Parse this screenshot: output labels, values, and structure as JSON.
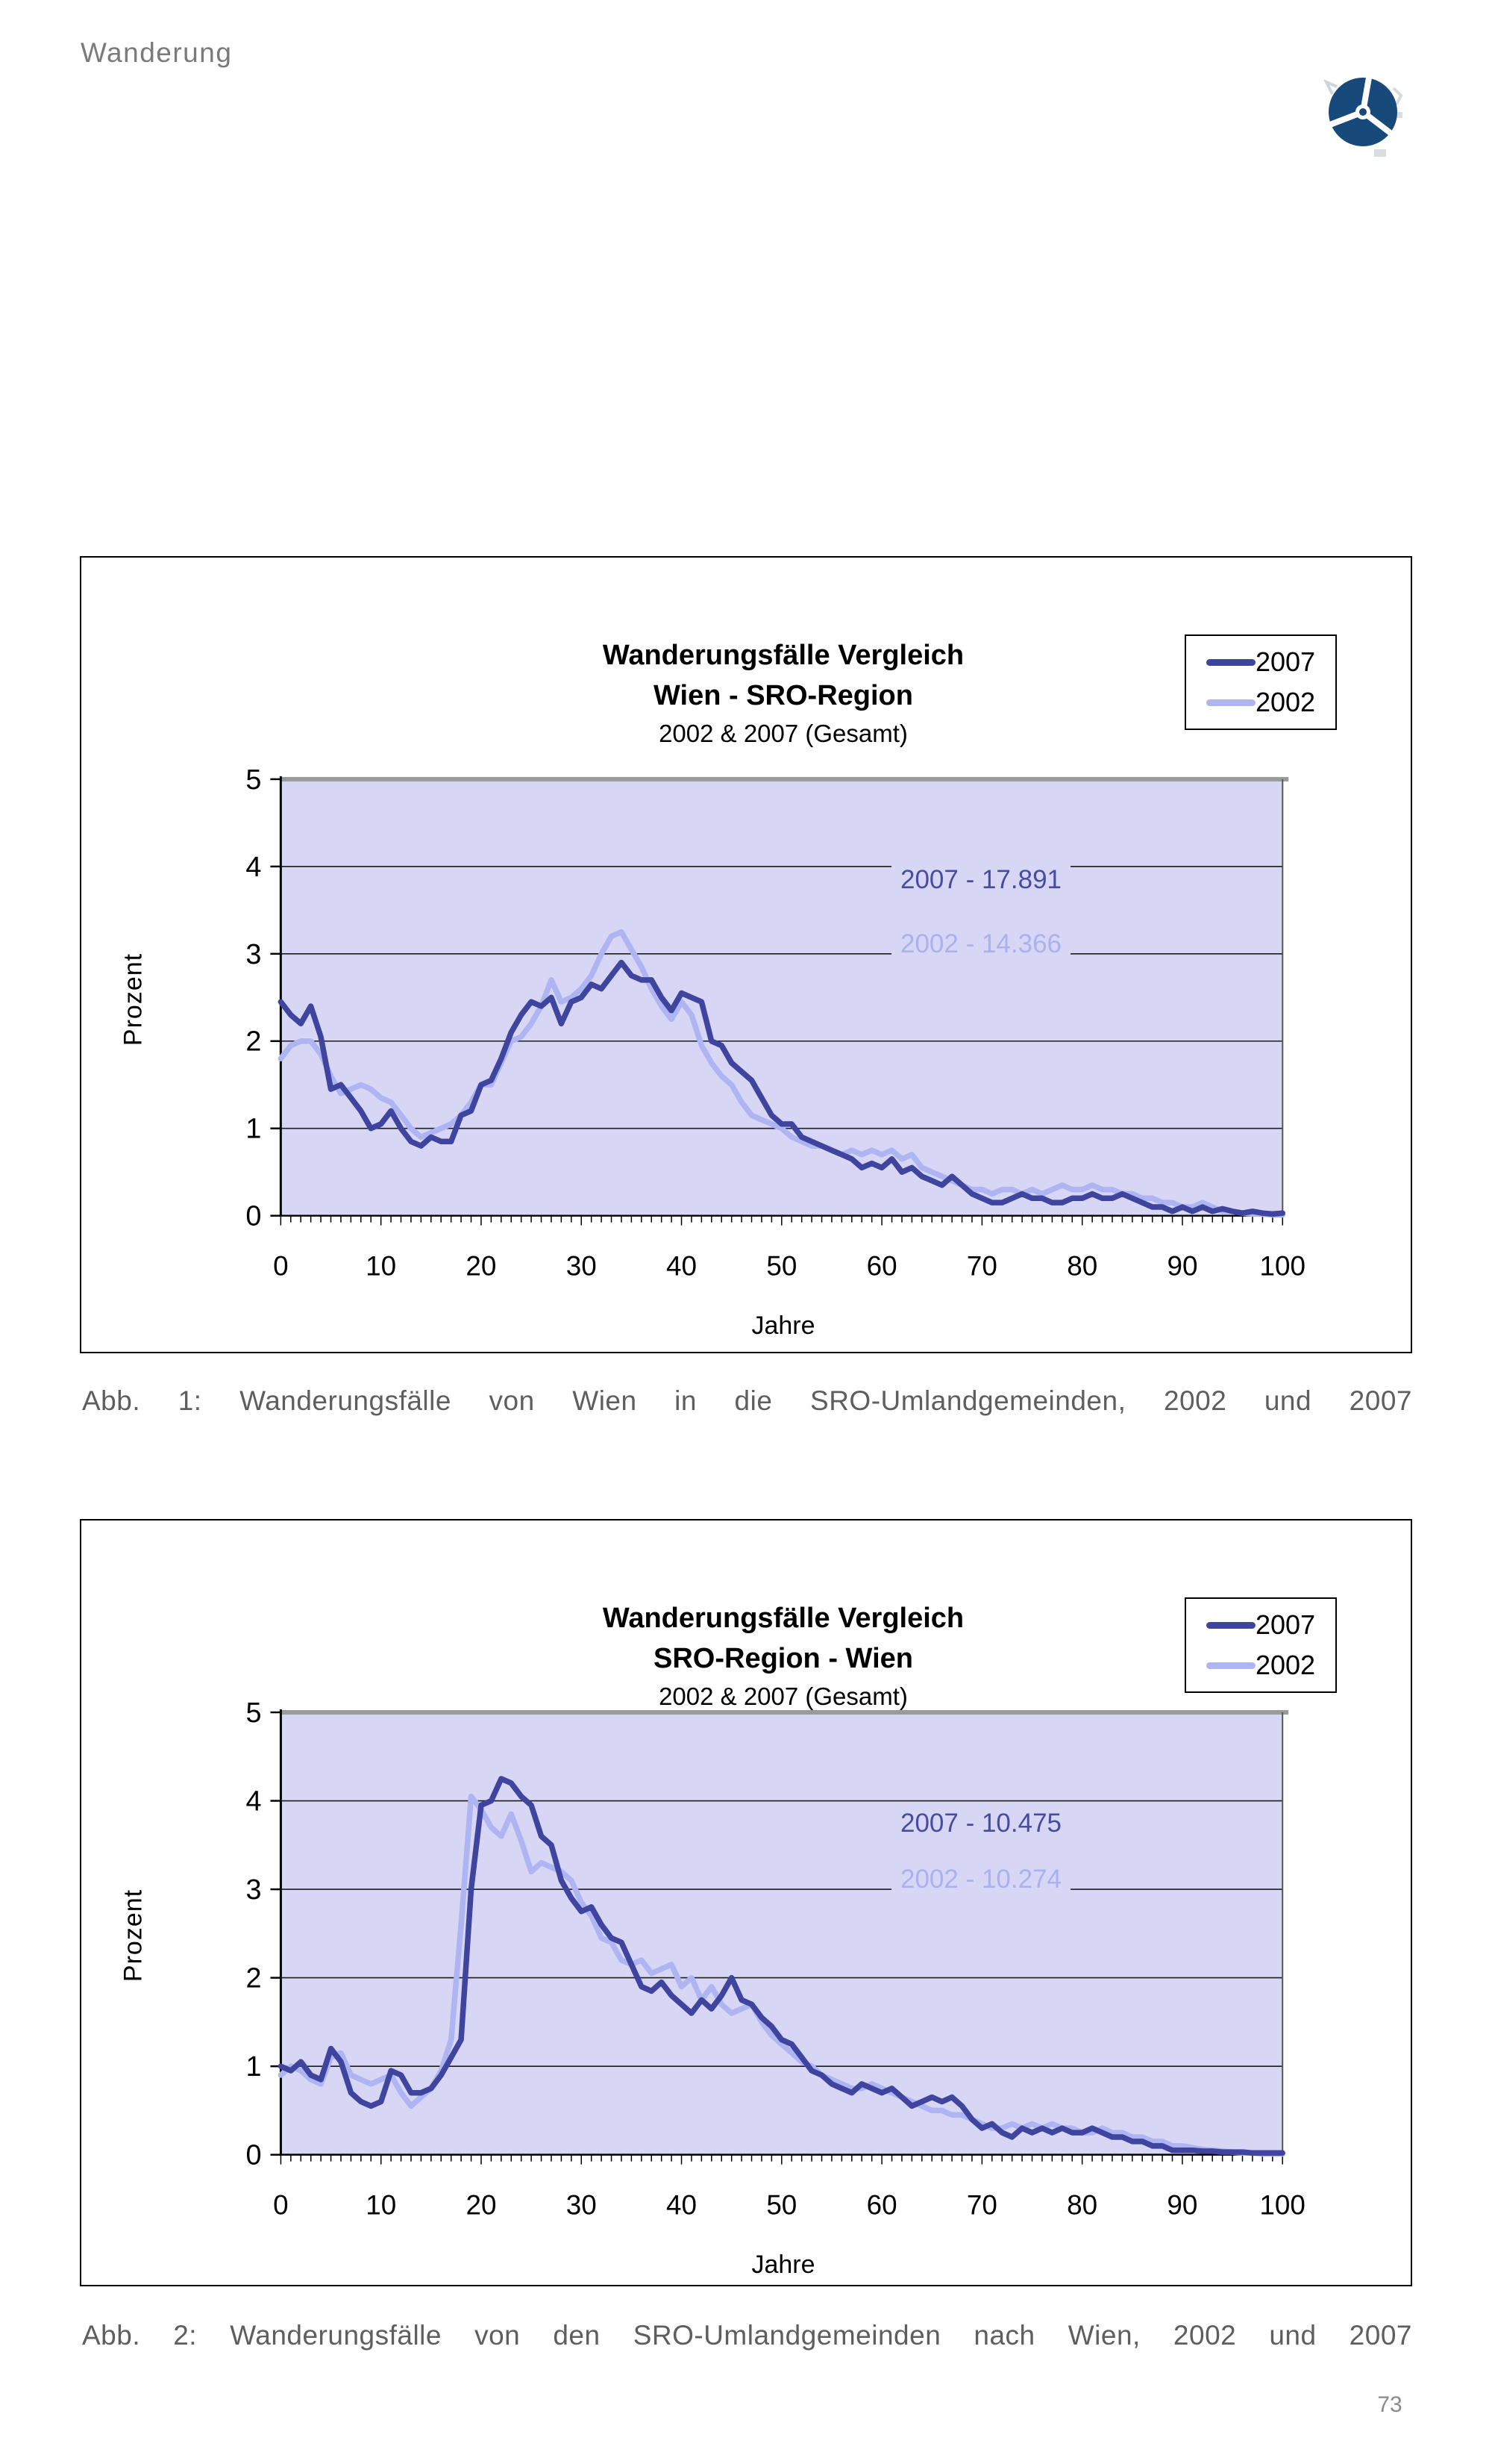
{
  "page": {
    "header_title": "Wanderung",
    "page_number": "73",
    "logo_name": "propeller-circle-logo",
    "logo_color": "#17497B"
  },
  "figures": [
    {
      "caption": "Abb. 1: Wanderungsfälle von Wien in die SRO-Umlandgemeinden, 2002 und 2007"
    },
    {
      "caption": "Abb. 2: Wanderungsfälle von den SRO-Umlandgemeinden nach Wien, 2002 und 2007"
    }
  ],
  "chart_data": [
    {
      "type": "line",
      "title": "Wanderungsfälle Vergleich",
      "subtitle": "Wien - SRO-Region",
      "subsubtitle": "2002 & 2007 (Gesamt)",
      "xlabel": "Jahre",
      "ylabel": "Prozent",
      "xlim": [
        0,
        100
      ],
      "ylim": [
        0,
        5
      ],
      "xticks": [
        0,
        10,
        20,
        30,
        40,
        50,
        60,
        70,
        80,
        90,
        100
      ],
      "yticks": [
        0,
        1,
        2,
        3,
        4,
        5
      ],
      "grid": "horizontal",
      "grid_color": "#1c1c1c",
      "plot_bg": "#D7D7F5",
      "legend_position": "top-right",
      "annotations": [
        {
          "text": "2007 - 17.891",
          "color": "#474CA3"
        },
        {
          "text": "2002 - 14.366",
          "color": "#A9B1EE"
        }
      ],
      "x_step": 1,
      "series": [
        {
          "name": "2007",
          "color": "#3F449E",
          "values": [
            2.45,
            2.3,
            2.2,
            2.4,
            2.05,
            1.45,
            1.5,
            1.35,
            1.2,
            1.0,
            1.05,
            1.2,
            1.0,
            0.85,
            0.8,
            0.9,
            0.85,
            0.85,
            1.15,
            1.2,
            1.5,
            1.55,
            1.8,
            2.1,
            2.3,
            2.45,
            2.4,
            2.5,
            2.2,
            2.45,
            2.5,
            2.65,
            2.6,
            2.75,
            2.9,
            2.75,
            2.7,
            2.7,
            2.5,
            2.35,
            2.55,
            2.5,
            2.45,
            2.0,
            1.95,
            1.75,
            1.65,
            1.55,
            1.35,
            1.15,
            1.05,
            1.05,
            0.9,
            0.85,
            0.8,
            0.75,
            0.7,
            0.65,
            0.55,
            0.6,
            0.55,
            0.65,
            0.5,
            0.55,
            0.45,
            0.4,
            0.35,
            0.45,
            0.35,
            0.25,
            0.2,
            0.15,
            0.15,
            0.2,
            0.25,
            0.2,
            0.2,
            0.15,
            0.15,
            0.2,
            0.2,
            0.25,
            0.2,
            0.2,
            0.25,
            0.2,
            0.15,
            0.1,
            0.1,
            0.05,
            0.1,
            0.05,
            0.1,
            0.05,
            0.08,
            0.05,
            0.03,
            0.05,
            0.03,
            0.02,
            0.03
          ]
        },
        {
          "name": "2002",
          "color": "#AEB5F2",
          "values": [
            1.8,
            1.95,
            2.0,
            2.0,
            1.85,
            1.6,
            1.4,
            1.45,
            1.5,
            1.45,
            1.35,
            1.3,
            1.15,
            1.0,
            0.9,
            0.95,
            1.0,
            1.05,
            1.15,
            1.3,
            1.5,
            1.5,
            1.75,
            2.0,
            2.05,
            2.2,
            2.4,
            2.7,
            2.45,
            2.5,
            2.6,
            2.75,
            3.0,
            3.2,
            3.25,
            3.05,
            2.85,
            2.6,
            2.4,
            2.25,
            2.45,
            2.3,
            1.95,
            1.75,
            1.6,
            1.5,
            1.3,
            1.15,
            1.1,
            1.05,
            1.0,
            0.9,
            0.85,
            0.8,
            0.8,
            0.75,
            0.7,
            0.75,
            0.7,
            0.75,
            0.7,
            0.75,
            0.65,
            0.7,
            0.55,
            0.5,
            0.45,
            0.4,
            0.35,
            0.3,
            0.3,
            0.25,
            0.3,
            0.3,
            0.25,
            0.3,
            0.25,
            0.3,
            0.35,
            0.3,
            0.3,
            0.35,
            0.3,
            0.3,
            0.25,
            0.25,
            0.2,
            0.2,
            0.15,
            0.15,
            0.1,
            0.1,
            0.15,
            0.1,
            0.05,
            0.05,
            0.03,
            0.02,
            0.02,
            0.01,
            0.01
          ]
        }
      ]
    },
    {
      "type": "line",
      "title": "Wanderungsfälle Vergleich",
      "subtitle": "SRO-Region - Wien",
      "subsubtitle": "2002 & 2007 (Gesamt)",
      "xlabel": "Jahre",
      "ylabel": "Prozent",
      "xlim": [
        0,
        100
      ],
      "ylim": [
        0,
        5
      ],
      "xticks": [
        0,
        10,
        20,
        30,
        40,
        50,
        60,
        70,
        80,
        90,
        100
      ],
      "yticks": [
        0,
        1,
        2,
        3,
        4,
        5
      ],
      "grid": "horizontal",
      "grid_color": "#1c1c1c",
      "plot_bg": "#D7D7F5",
      "legend_position": "top-right",
      "annotations": [
        {
          "text": "2007 - 10.475",
          "color": "#474CA3"
        },
        {
          "text": "2002 - 10.274",
          "color": "#A9B1EE"
        }
      ],
      "x_step": 1,
      "series": [
        {
          "name": "2007",
          "color": "#3F449E",
          "values": [
            1.0,
            0.95,
            1.05,
            0.9,
            0.85,
            1.2,
            1.05,
            0.7,
            0.6,
            0.55,
            0.6,
            0.95,
            0.9,
            0.7,
            0.7,
            0.75,
            0.9,
            1.1,
            1.3,
            3.0,
            3.95,
            4.0,
            4.25,
            4.2,
            4.05,
            3.95,
            3.6,
            3.5,
            3.1,
            2.9,
            2.75,
            2.8,
            2.6,
            2.45,
            2.4,
            2.15,
            1.9,
            1.85,
            1.95,
            1.8,
            1.7,
            1.6,
            1.75,
            1.65,
            1.8,
            2.0,
            1.75,
            1.7,
            1.55,
            1.45,
            1.3,
            1.25,
            1.1,
            0.95,
            0.9,
            0.8,
            0.75,
            0.7,
            0.8,
            0.75,
            0.7,
            0.75,
            0.65,
            0.55,
            0.6,
            0.65,
            0.6,
            0.65,
            0.55,
            0.4,
            0.3,
            0.35,
            0.25,
            0.2,
            0.3,
            0.25,
            0.3,
            0.25,
            0.3,
            0.25,
            0.25,
            0.3,
            0.25,
            0.2,
            0.2,
            0.15,
            0.15,
            0.1,
            0.1,
            0.05,
            0.05,
            0.05,
            0.04,
            0.04,
            0.03,
            0.03,
            0.03,
            0.02,
            0.02,
            0.02,
            0.02
          ]
        },
        {
          "name": "2002",
          "color": "#AEB5F2",
          "values": [
            0.9,
            1.0,
            0.95,
            0.85,
            0.8,
            1.1,
            1.15,
            0.9,
            0.85,
            0.8,
            0.85,
            0.9,
            0.7,
            0.55,
            0.65,
            0.75,
            0.95,
            1.3,
            2.6,
            4.05,
            3.9,
            3.7,
            3.6,
            3.85,
            3.55,
            3.2,
            3.3,
            3.25,
            3.2,
            3.1,
            2.85,
            2.7,
            2.45,
            2.4,
            2.2,
            2.15,
            2.2,
            2.05,
            2.1,
            2.15,
            1.9,
            2.0,
            1.75,
            1.9,
            1.7,
            1.6,
            1.65,
            1.7,
            1.5,
            1.35,
            1.25,
            1.15,
            1.05,
            1.0,
            0.9,
            0.85,
            0.8,
            0.75,
            0.75,
            0.8,
            0.75,
            0.7,
            0.65,
            0.6,
            0.55,
            0.5,
            0.5,
            0.45,
            0.45,
            0.4,
            0.35,
            0.3,
            0.3,
            0.35,
            0.3,
            0.35,
            0.3,
            0.35,
            0.3,
            0.3,
            0.25,
            0.25,
            0.3,
            0.25,
            0.25,
            0.2,
            0.2,
            0.15,
            0.15,
            0.1,
            0.1,
            0.08,
            0.06,
            0.05,
            0.04,
            0.03,
            0.02,
            0.02,
            0.01,
            0.01,
            0.01
          ]
        }
      ]
    }
  ]
}
